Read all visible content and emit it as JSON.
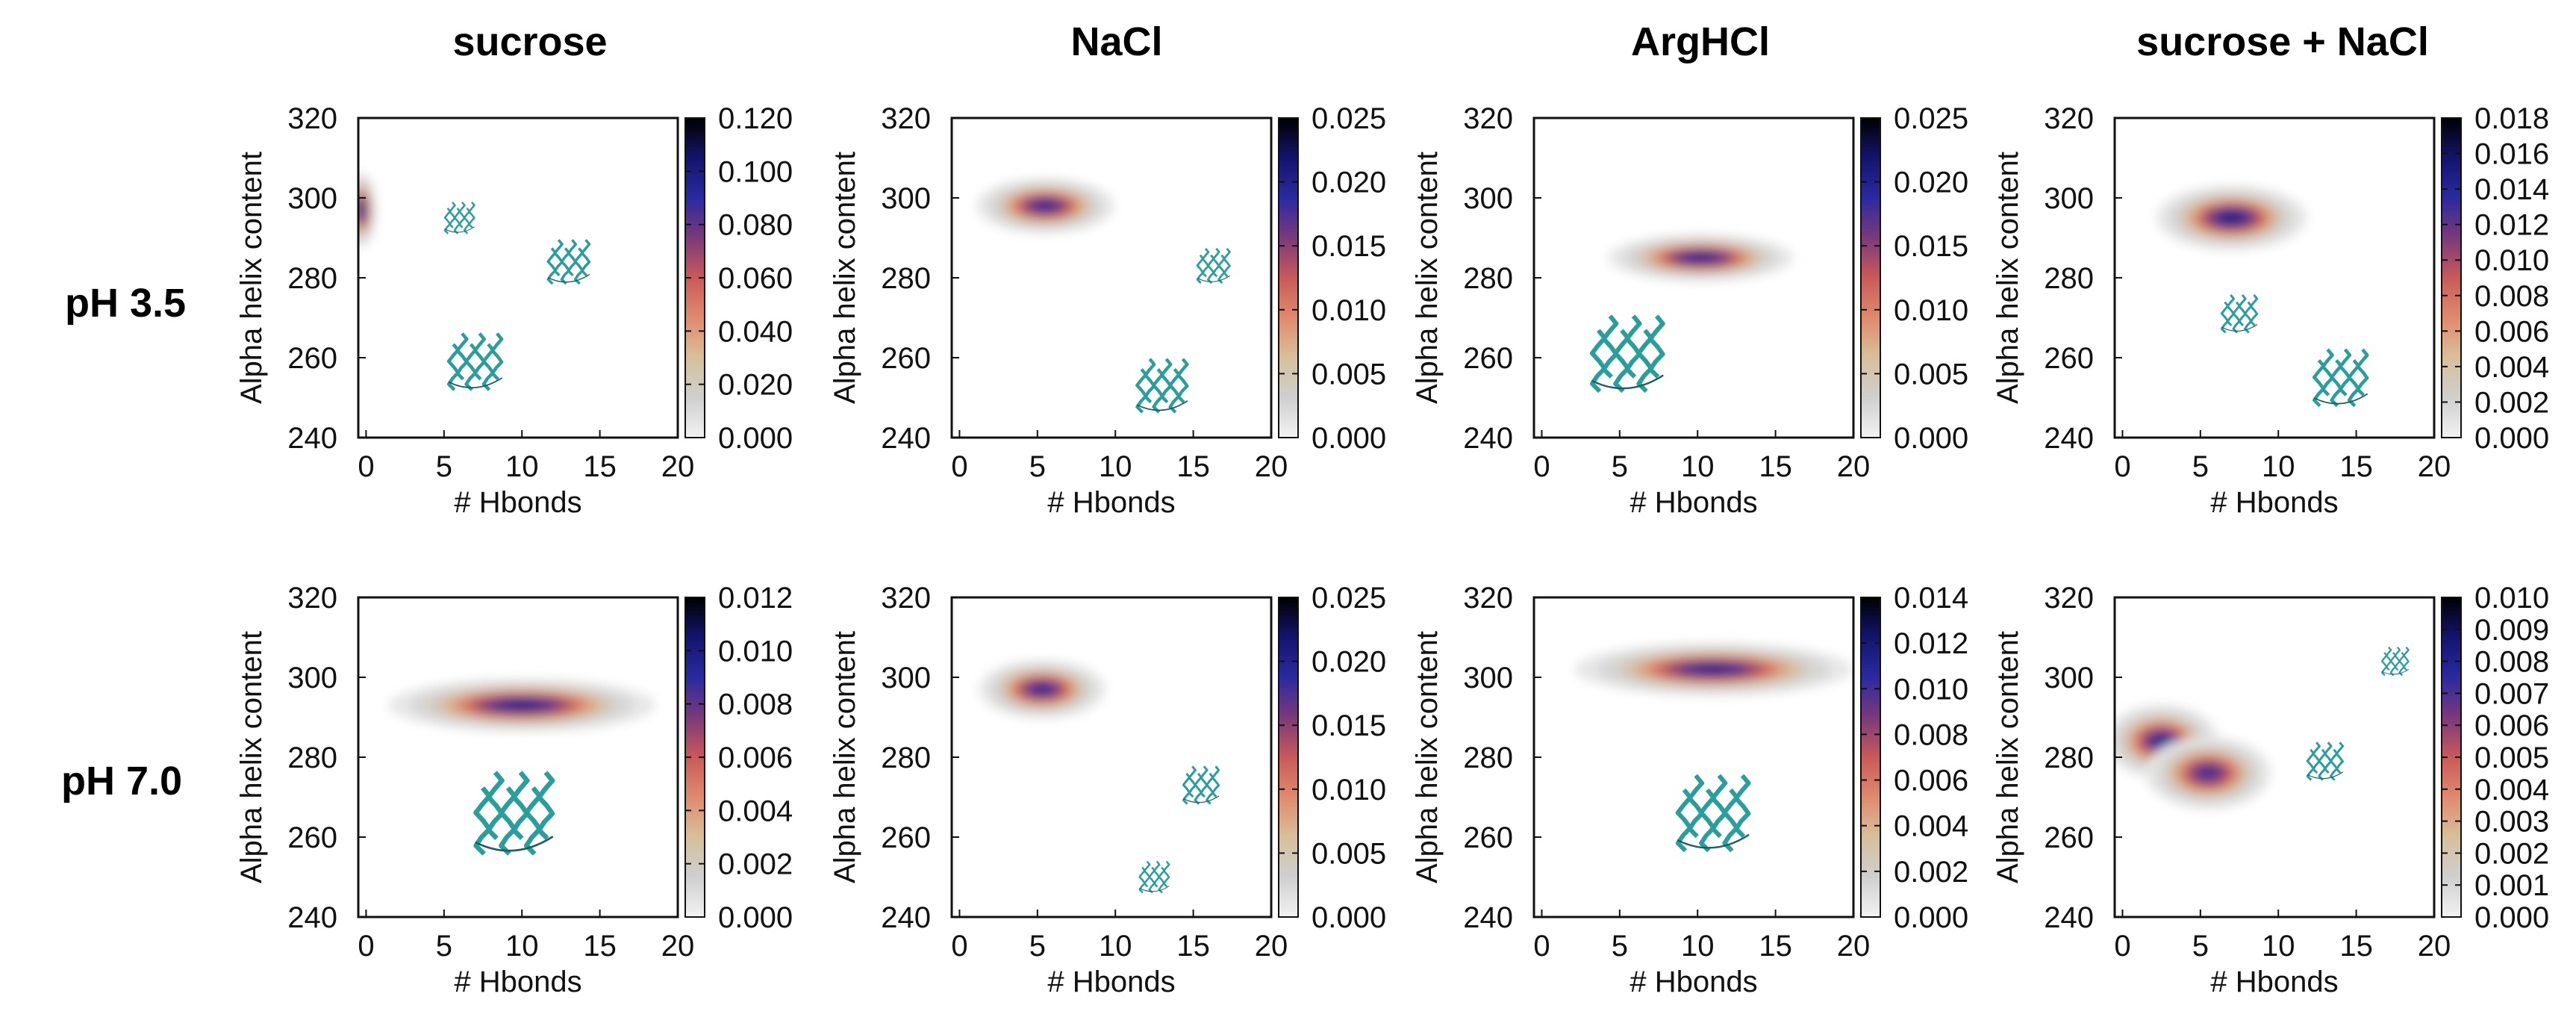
{
  "row_labels": [
    "pH 3.5",
    "pH 7.0"
  ],
  "column_titles": [
    "sucrose",
    "NaCl",
    "ArgHCl",
    "sucrose + NaCl"
  ],
  "colors": {
    "colormap": [
      "#f2f2f2",
      "#cfcfcf",
      "#d8bf9a",
      "#e08a6e",
      "#c85a5a",
      "#7a3a7a",
      "#2a2aa0",
      "#14146e",
      "#000000"
    ],
    "protein_cartoon": "#2a9d9d"
  },
  "chart_data": [
    {
      "type": "heatmap",
      "row": "pH 3.5",
      "title": "sucrose",
      "xlabel": "# Hbonds",
      "ylabel": "Alpha helix content",
      "xlim": [
        -0.5,
        20
      ],
      "ylim": [
        240,
        320
      ],
      "x_ticks": [
        "0",
        "5",
        "10",
        "15",
        "20"
      ],
      "y_ticks": [
        "240",
        "260",
        "280",
        "300",
        "320"
      ],
      "colorbar": {
        "min": 0,
        "max": 0.12,
        "ticks": [
          "0.000",
          "0.020",
          "0.040",
          "0.060",
          "0.080",
          "0.100",
          "0.120"
        ]
      },
      "density_peaks": [
        {
          "x": -0.3,
          "y": 297,
          "sx": 0.5,
          "sy": 5,
          "peak": 0.12
        }
      ],
      "protein_icons": [
        {
          "x": 6,
          "y": 295,
          "scale": 0.5
        },
        {
          "x": 13,
          "y": 284,
          "scale": 0.7
        },
        {
          "x": 7,
          "y": 259,
          "scale": 0.9
        }
      ]
    },
    {
      "type": "heatmap",
      "row": "pH 3.5",
      "title": "NaCl",
      "xlabel": "# Hbonds",
      "ylabel": "Alpha helix content",
      "xlim": [
        -0.5,
        20
      ],
      "ylim": [
        240,
        320
      ],
      "x_ticks": [
        "0",
        "5",
        "10",
        "15",
        "20"
      ],
      "y_ticks": [
        "240",
        "260",
        "280",
        "300",
        "320"
      ],
      "colorbar": {
        "min": 0,
        "max": 0.025,
        "ticks": [
          "0.000",
          "0.005",
          "0.010",
          "0.015",
          "0.020",
          "0.025"
        ]
      },
      "density_peaks": [
        {
          "x": 5.5,
          "y": 298,
          "sx": 2.4,
          "sy": 3.8,
          "peak": 0.021
        }
      ],
      "protein_icons": [
        {
          "x": 16.3,
          "y": 283,
          "scale": 0.55
        },
        {
          "x": 13,
          "y": 253,
          "scale": 0.85
        }
      ]
    },
    {
      "type": "heatmap",
      "row": "pH 3.5",
      "title": "ArgHCl",
      "xlabel": "# Hbonds",
      "ylabel": "Alpha helix content",
      "xlim": [
        -0.5,
        20
      ],
      "ylim": [
        240,
        320
      ],
      "x_ticks": [
        "0",
        "5",
        "10",
        "15",
        "20"
      ],
      "y_ticks": [
        "240",
        "260",
        "280",
        "300",
        "320"
      ],
      "colorbar": {
        "min": 0,
        "max": 0.025,
        "ticks": [
          "0.000",
          "0.005",
          "0.010",
          "0.015",
          "0.020",
          "0.025"
        ]
      },
      "density_peaks": [
        {
          "x": 10.2,
          "y": 285,
          "sx": 3.2,
          "sy": 3.2,
          "peak": 0.022
        }
      ],
      "protein_icons": [
        {
          "x": 5.5,
          "y": 261,
          "scale": 1.2
        }
      ]
    },
    {
      "type": "heatmap",
      "row": "pH 3.5",
      "title": "sucrose + NaCl",
      "xlabel": "# Hbonds",
      "ylabel": "Alpha helix content",
      "xlim": [
        -0.5,
        20
      ],
      "ylim": [
        240,
        320
      ],
      "x_ticks": [
        "0",
        "5",
        "10",
        "15",
        "20"
      ],
      "y_ticks": [
        "240",
        "260",
        "280",
        "300",
        "320"
      ],
      "colorbar": {
        "min": 0,
        "max": 0.018,
        "ticks": [
          "0.000",
          "0.002",
          "0.004",
          "0.006",
          "0.008",
          "0.010",
          "0.012",
          "0.014",
          "0.016",
          "0.018"
        ]
      },
      "density_peaks": [
        {
          "x": 7,
          "y": 295,
          "sx": 2.6,
          "sy": 4.4,
          "peak": 0.016
        }
      ],
      "protein_icons": [
        {
          "x": 7.5,
          "y": 271,
          "scale": 0.6
        },
        {
          "x": 14,
          "y": 255,
          "scale": 0.9
        }
      ]
    },
    {
      "type": "heatmap",
      "row": "pH 7.0",
      "title": "sucrose",
      "xlabel": "# Hbonds",
      "ylabel": "Alpha helix content",
      "xlim": [
        -0.5,
        20
      ],
      "ylim": [
        240,
        320
      ],
      "x_ticks": [
        "0",
        "5",
        "10",
        "15",
        "20"
      ],
      "y_ticks": [
        "240",
        "260",
        "280",
        "300",
        "320"
      ],
      "colorbar": {
        "min": 0,
        "max": 0.012,
        "ticks": [
          "0.000",
          "0.002",
          "0.004",
          "0.006",
          "0.008",
          "0.010",
          "0.012"
        ]
      },
      "density_peaks": [
        {
          "x": 10,
          "y": 293,
          "sx": 4.6,
          "sy": 3.6,
          "peak": 0.0105
        }
      ],
      "protein_icons": [
        {
          "x": 9.5,
          "y": 266,
          "scale": 1.3
        }
      ]
    },
    {
      "type": "heatmap",
      "row": "pH 7.0",
      "title": "NaCl",
      "xlabel": "# Hbonds",
      "ylabel": "Alpha helix content",
      "xlim": [
        -0.5,
        20
      ],
      "ylim": [
        240,
        320
      ],
      "x_ticks": [
        "0",
        "5",
        "10",
        "15",
        "20"
      ],
      "y_ticks": [
        "240",
        "260",
        "280",
        "300",
        "320"
      ],
      "colorbar": {
        "min": 0,
        "max": 0.025,
        "ticks": [
          "0.000",
          "0.005",
          "0.010",
          "0.015",
          "0.020",
          "0.025"
        ]
      },
      "density_peaks": [
        {
          "x": 5.3,
          "y": 297,
          "sx": 2.2,
          "sy": 4,
          "peak": 0.021
        }
      ],
      "protein_icons": [
        {
          "x": 15.5,
          "y": 273,
          "scale": 0.6
        },
        {
          "x": 12.5,
          "y": 250,
          "scale": 0.5
        }
      ]
    },
    {
      "type": "heatmap",
      "row": "pH 7.0",
      "title": "ArgHCl",
      "xlabel": "# Hbonds",
      "ylabel": "Alpha helix content",
      "xlim": [
        -0.5,
        20
      ],
      "ylim": [
        240,
        320
      ],
      "x_ticks": [
        "0",
        "5",
        "10",
        "15",
        "20"
      ],
      "y_ticks": [
        "240",
        "260",
        "280",
        "300",
        "320"
      ],
      "colorbar": {
        "min": 0,
        "max": 0.014,
        "ticks": [
          "0.000",
          "0.002",
          "0.004",
          "0.006",
          "0.008",
          "0.010",
          "0.012",
          "0.014"
        ]
      },
      "density_peaks": [
        {
          "x": 11,
          "y": 302,
          "sx": 4.8,
          "sy": 3.6,
          "peak": 0.012
        }
      ],
      "protein_icons": [
        {
          "x": 11,
          "y": 266,
          "scale": 1.2
        }
      ]
    },
    {
      "type": "heatmap",
      "row": "pH 7.0",
      "title": "sucrose + NaCl",
      "xlabel": "# Hbonds",
      "ylabel": "Alpha helix content",
      "xlim": [
        -0.5,
        20
      ],
      "ylim": [
        240,
        320
      ],
      "x_ticks": [
        "0",
        "5",
        "10",
        "15",
        "20"
      ],
      "y_ticks": [
        "240",
        "260",
        "280",
        "300",
        "320"
      ],
      "colorbar": {
        "min": 0,
        "max": 0.01,
        "ticks": [
          "0.000",
          "0.001",
          "0.002",
          "0.003",
          "0.004",
          "0.005",
          "0.006",
          "0.007",
          "0.008",
          "0.009",
          "0.010"
        ]
      },
      "density_peaks": [
        {
          "x": 2.5,
          "y": 284,
          "sx": 2,
          "sy": 5,
          "peak": 0.0085
        },
        {
          "x": 5.5,
          "y": 276,
          "sx": 2.2,
          "sy": 5,
          "peak": 0.008
        }
      ],
      "protein_icons": [
        {
          "x": 13,
          "y": 279,
          "scale": 0.6
        },
        {
          "x": 17.5,
          "y": 304,
          "scale": 0.45
        }
      ]
    }
  ]
}
